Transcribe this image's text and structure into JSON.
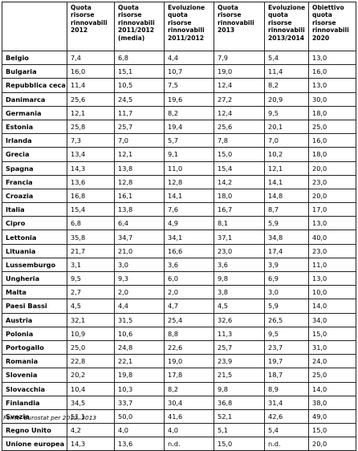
{
  "headers": [
    "",
    "Quota risorse rinnovabili 2012",
    "Quota risorse rinnovabili 2011/2012 (media)",
    "Evoluzione quota risorse rinnovabili 2011/2012",
    "Quota risorse rinnovabili 2013",
    "Evoluzione quota risorse rinnovabili 2013/2014",
    "Obiettivo quota risorse rinnovabili 2020"
  ],
  "rows": [
    [
      "Belgio",
      "7,4",
      "6,8",
      "4,4",
      "7,9",
      "5,4",
      "13,0"
    ],
    [
      "Bulgaria",
      "16,0",
      "15,1",
      "10,7",
      "19,0",
      "11,4",
      "16,0"
    ],
    [
      "Repubblica ceca",
      "11,4",
      "10,5",
      "7,5",
      "12,4",
      "8,2",
      "13,0"
    ],
    [
      "Danimarca",
      "25,6",
      "24,5",
      "19,6",
      "27,2",
      "20,9",
      "30,0"
    ],
    [
      "Germania",
      "12,1",
      "11,7",
      "8,2",
      "12,4",
      "9,5",
      "18,0"
    ],
    [
      "Estonia",
      "25,8",
      "25,7",
      "19,4",
      "25,6",
      "20,1",
      "25,0"
    ],
    [
      "Irlanda",
      "7,3",
      "7,0",
      "5,7",
      "7,8",
      "7,0",
      "16,0"
    ],
    [
      "Grecia",
      "13,4",
      "12,1",
      "9,1",
      "15,0",
      "10,2",
      "18,0"
    ],
    [
      "Spagna",
      "14,3",
      "13,8",
      "11,0",
      "15,4",
      "12,1",
      "20,0"
    ],
    [
      "Francia",
      "13,6",
      "12,8",
      "12,8",
      "14,2",
      "14,1",
      "23,0"
    ],
    [
      "Croazia",
      "16,8",
      "16,1",
      "14,1",
      "18,0",
      "14,8",
      "20,0"
    ],
    [
      "Italia",
      "15,4",
      "13,8",
      "7,6",
      "16,7",
      "8,7",
      "17,0"
    ],
    [
      "Cipro",
      "6,8",
      "6,4",
      "4,9",
      "8,1",
      "5,9",
      "13,0"
    ],
    [
      "Lettonia",
      "35,8",
      "34,7",
      "34,1",
      "37,1",
      "34,8",
      "40,0"
    ],
    [
      "Lituania",
      "21,7",
      "21,0",
      "16,6",
      "23,0",
      "17,4",
      "23,0"
    ],
    [
      "Lussemburgo",
      "3,1",
      "3,0",
      "3,6",
      "3,6",
      "3,9",
      "11,0"
    ],
    [
      "Ungheria",
      "9,5",
      "9,3",
      "6,0",
      "9,8",
      "6,9",
      "13,0"
    ],
    [
      "Malta",
      "2,7",
      "2,0",
      "2,0",
      "3,8",
      "3,0",
      "10,0"
    ],
    [
      "Paesi Bassi",
      "4,5",
      "4,4",
      "4,7",
      "4,5",
      "5,9",
      "14,0"
    ],
    [
      "Austria",
      "32,1",
      "31,5",
      "25,4",
      "32,6",
      "26,5",
      "34,0"
    ],
    [
      "Polonia",
      "10,9",
      "10,6",
      "8,8",
      "11,3",
      "9,5",
      "15,0"
    ],
    [
      "Portogallo",
      "25,0",
      "24,8",
      "22,6",
      "25,7",
      "23,7",
      "31,0"
    ],
    [
      "Romania",
      "22,8",
      "22,1",
      "19,0",
      "23,9",
      "19,7",
      "24,0"
    ],
    [
      "Slovenia",
      "20,2",
      "19,8",
      "17,8",
      "21,5",
      "18,7",
      "25,0"
    ],
    [
      "Slovacchia",
      "10,4",
      "10,3",
      "8,2",
      "9,8",
      "8,9",
      "14,0"
    ],
    [
      "Finlandia",
      "34,5",
      "33,7",
      "30,4",
      "36,8",
      "31,4",
      "38,0"
    ],
    [
      "Svezia",
      "51,1",
      "50,0",
      "41,6",
      "52,1",
      "42,6",
      "49,0"
    ],
    [
      "Regno Unito",
      "4,2",
      "4,0",
      "4,0",
      "5,1",
      "5,4",
      "15,0"
    ],
    [
      "Unione europea",
      "14,3",
      "13,6",
      "n.d.",
      "15,0",
      "n.d.",
      "20,0"
    ]
  ],
  "source": "Fonte: Eurostat per 2012, 2013"
}
